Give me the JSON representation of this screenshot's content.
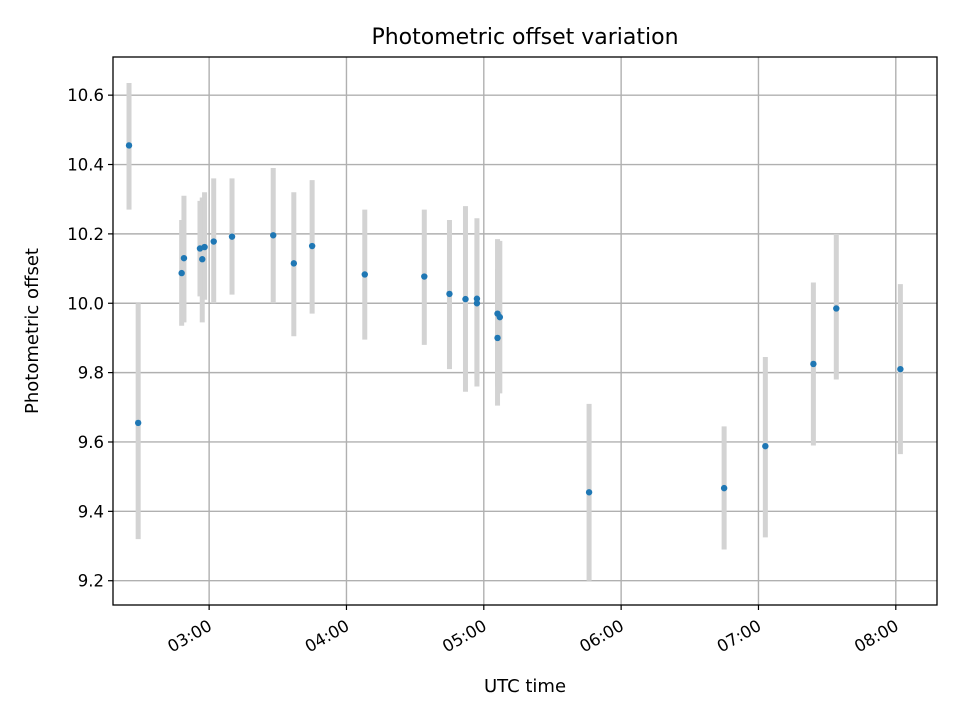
{
  "chart_data": {
    "type": "scatter",
    "title": "Photometric offset variation",
    "xlabel": "UTC time",
    "ylabel": "Photometric offset",
    "xlim": [
      "02:18",
      "08:18"
    ],
    "ylim": [
      9.13,
      10.71
    ],
    "grid": true,
    "x_ticks": [
      "03:00",
      "04:00",
      "05:00",
      "06:00",
      "07:00",
      "08:00"
    ],
    "y_ticks": [
      "9.2",
      "9.4",
      "9.6",
      "9.8",
      "10.0",
      "10.2",
      "10.4",
      "10.6"
    ],
    "marker_color": "#1f77b4",
    "errorbar_color": "#d3d3d3",
    "points": [
      {
        "x": "02:25",
        "y": 10.455,
        "ylo": 10.27,
        "yhi": 10.635
      },
      {
        "x": "02:29",
        "y": 9.655,
        "ylo": 9.32,
        "yhi": 10.0
      },
      {
        "x": "02:48",
        "y": 10.087,
        "ylo": 9.935,
        "yhi": 10.24
      },
      {
        "x": "02:49",
        "y": 10.13,
        "ylo": 9.945,
        "yhi": 10.31
      },
      {
        "x": "02:56",
        "y": 10.158,
        "ylo": 10.02,
        "yhi": 10.295
      },
      {
        "x": "02:57",
        "y": 10.127,
        "ylo": 9.945,
        "yhi": 10.305
      },
      {
        "x": "02:58",
        "y": 10.162,
        "ylo": 10.01,
        "yhi": 10.32
      },
      {
        "x": "03:02",
        "y": 10.178,
        "ylo": 10.0,
        "yhi": 10.36
      },
      {
        "x": "03:10",
        "y": 10.192,
        "ylo": 10.025,
        "yhi": 10.36
      },
      {
        "x": "03:28",
        "y": 10.196,
        "ylo": 10.0,
        "yhi": 10.39
      },
      {
        "x": "03:37",
        "y": 10.115,
        "ylo": 9.905,
        "yhi": 10.32
      },
      {
        "x": "03:45",
        "y": 10.165,
        "ylo": 9.97,
        "yhi": 10.355
      },
      {
        "x": "04:08",
        "y": 10.083,
        "ylo": 9.895,
        "yhi": 10.27
      },
      {
        "x": "04:34",
        "y": 10.077,
        "ylo": 9.88,
        "yhi": 10.27
      },
      {
        "x": "04:45",
        "y": 10.027,
        "ylo": 9.81,
        "yhi": 10.24
      },
      {
        "x": "04:52",
        "y": 10.012,
        "ylo": 9.745,
        "yhi": 10.28
      },
      {
        "x": "04:57",
        "y": 10.013,
        "ylo": 9.76,
        "yhi": 10.245
      },
      {
        "x": "04:57",
        "y": 10.0,
        "ylo": 9.78,
        "yhi": 10.2
      },
      {
        "x": "05:06",
        "y": 9.9,
        "ylo": 9.705,
        "yhi": 10.1
      },
      {
        "x": "05:06",
        "y": 9.97,
        "ylo": 9.76,
        "yhi": 10.185
      },
      {
        "x": "05:07",
        "y": 9.96,
        "ylo": 9.74,
        "yhi": 10.18
      },
      {
        "x": "05:46",
        "y": 9.455,
        "ylo": 9.2,
        "yhi": 9.71
      },
      {
        "x": "06:45",
        "y": 9.467,
        "ylo": 9.29,
        "yhi": 9.645
      },
      {
        "x": "07:03",
        "y": 9.588,
        "ylo": 9.325,
        "yhi": 9.845
      },
      {
        "x": "07:24",
        "y": 9.825,
        "ylo": 9.59,
        "yhi": 10.06
      },
      {
        "x": "07:34",
        "y": 9.985,
        "ylo": 9.78,
        "yhi": 10.2
      },
      {
        "x": "08:02",
        "y": 9.81,
        "ylo": 9.565,
        "yhi": 10.055
      }
    ]
  }
}
